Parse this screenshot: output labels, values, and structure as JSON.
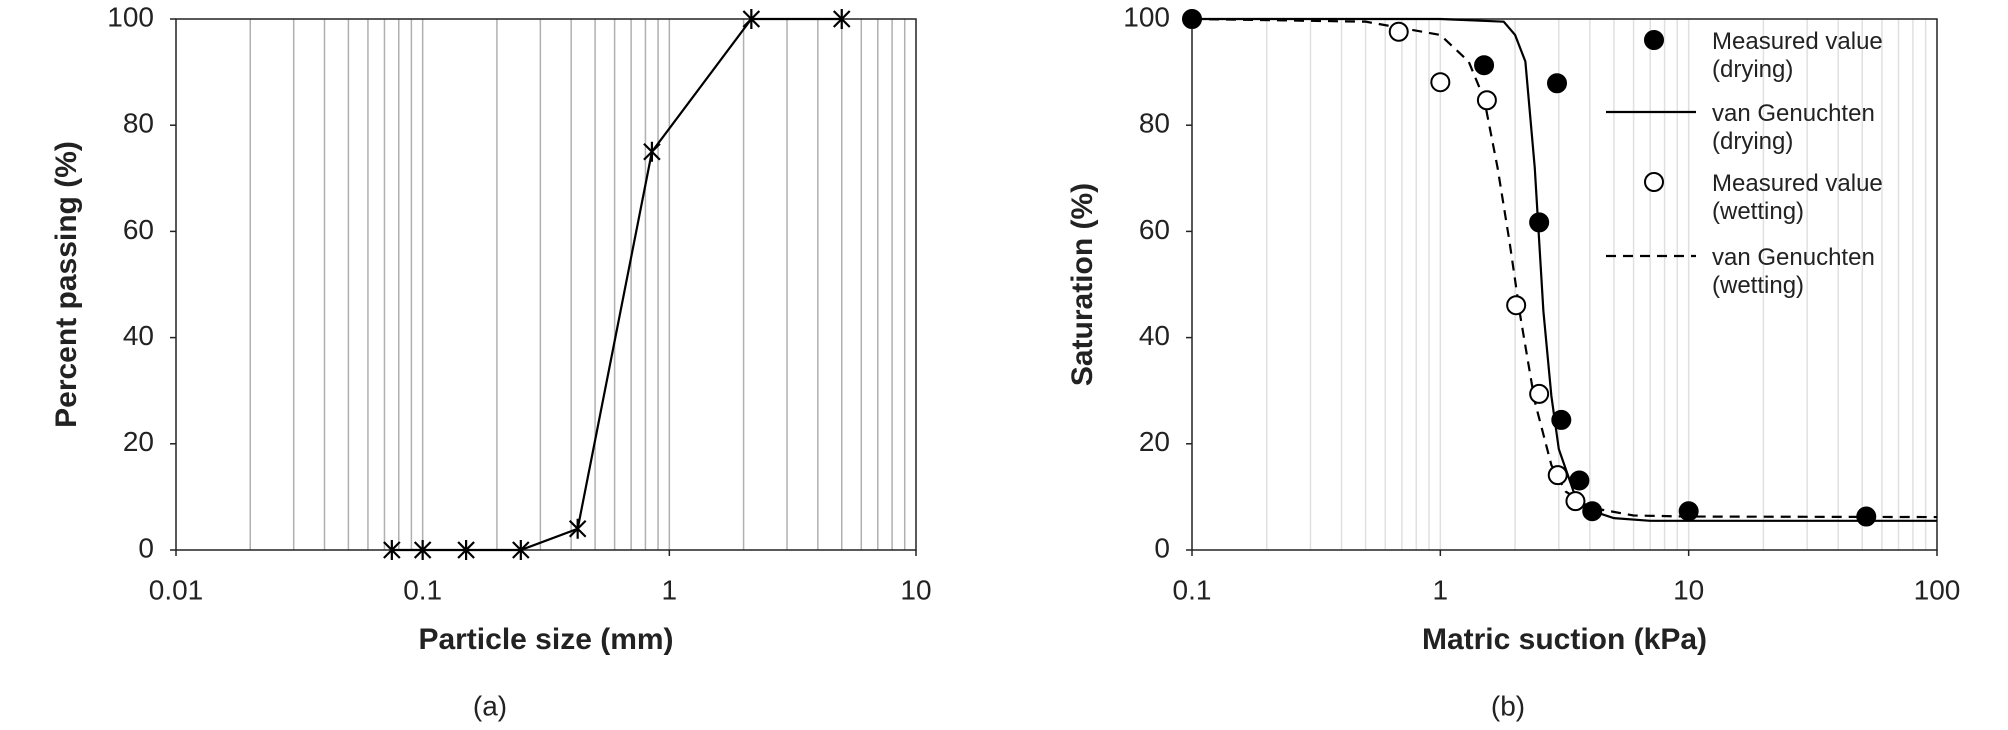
{
  "chart_data": [
    {
      "type": "line",
      "caption": "(a)",
      "x_label": "Particle size (mm)",
      "y_label": "Percent passing (%)",
      "log_x": true,
      "grid": "x-minor",
      "grid_color": "#b0b0b0",
      "xlim": [
        0.01,
        10
      ],
      "xticks": [
        0.01,
        0.1,
        1,
        10
      ],
      "ylim": [
        0,
        100
      ],
      "yticks": [
        0,
        20,
        40,
        60,
        80,
        100
      ],
      "series": [
        {
          "color": "#000000",
          "marker": "asterisk",
          "line": "solid",
          "x": [
            0.075,
            0.1,
            0.15,
            0.25,
            0.425,
            0.85,
            2.15,
            5
          ],
          "values": [
            0,
            0,
            0,
            0,
            4,
            75,
            100,
            100
          ]
        }
      ]
    },
    {
      "type": "line",
      "caption": "(b)",
      "x_label": "Matric suction (kPa)",
      "y_label": "Saturation (%)",
      "log_x": true,
      "grid": "x-minor",
      "grid_color": "#e0e0e0",
      "legend": "upper right",
      "xlim": [
        0.1,
        100
      ],
      "xticks": [
        0.1,
        1,
        10,
        100
      ],
      "ylim": [
        0,
        100
      ],
      "yticks": [
        0,
        20,
        40,
        60,
        80,
        100
      ],
      "series": [
        {
          "name": "Measured value (drying)",
          "color": "#000000",
          "marker": "filled-circle",
          "x": [
            0.1,
            1.5,
            2.95,
            2.5,
            3.07,
            3.63,
            4.09,
            10,
            51.9
          ],
          "values": [
            100,
            91.3,
            87.9,
            61.7,
            24.5,
            13.1,
            7.3,
            7.3,
            6.3
          ]
        },
        {
          "name": "van Genuchten (drying)",
          "color": "#000000",
          "line": "solid",
          "x": [
            0.1,
            1,
            1.8,
            2,
            2.2,
            2.4,
            2.6,
            2.8,
            3,
            3.5,
            4,
            5,
            7,
            10,
            100
          ],
          "values": [
            100,
            100,
            99.5,
            97,
            92,
            72,
            45,
            29,
            19,
            10,
            7.5,
            6,
            5.5,
            5.5,
            5.5
          ]
        },
        {
          "name": "Measured value (wetting)",
          "color": "#000000",
          "marker": "open-circle",
          "x": [
            0.68,
            1,
            1.54,
            2.02,
            2.5,
            2.97,
            3.5
          ],
          "values": [
            97.6,
            88.1,
            84.7,
            46.1,
            29.4,
            14.1,
            9.2
          ]
        },
        {
          "name": "van Genuchten (wetting)",
          "color": "#000000",
          "line": "dashed",
          "x": [
            0.1,
            0.5,
            1,
            1.3,
            1.5,
            1.7,
            1.9,
            2.1,
            2.4,
            2.8,
            3.2,
            4,
            6,
            10,
            100
          ],
          "values": [
            100,
            99.5,
            97,
            92,
            85,
            72,
            58,
            44,
            28,
            16,
            11,
            8,
            6.5,
            6.3,
            6.2
          ]
        }
      ]
    }
  ]
}
